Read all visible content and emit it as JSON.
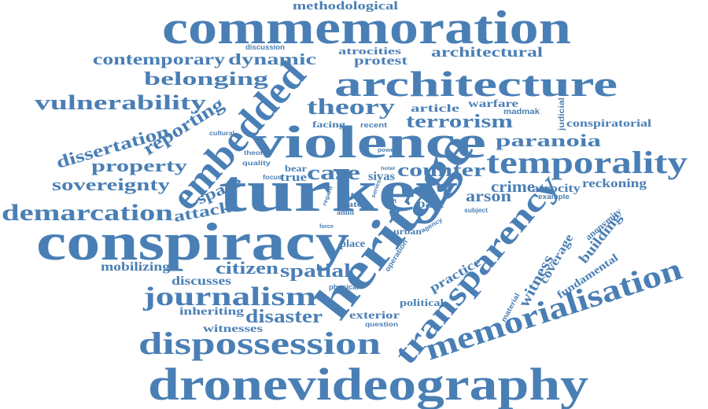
{
  "color": "#4a7fb5",
  "words": [
    "commemoration",
    "methodological",
    "discussion",
    "atrocities",
    "architectural",
    "contemporary",
    "dynamic",
    "protest",
    "embedded",
    "architecture",
    "belonging",
    "vulnerability",
    "theory",
    "article",
    "warfare",
    "madmak",
    "judicial",
    "reporting",
    "terrorism",
    "conspiratorial",
    "dissertation",
    "facing",
    "recent",
    "cultural",
    "violence",
    "paranoia",
    "property",
    "theorist",
    "quality",
    "power",
    "temporality",
    "focus",
    "bear",
    "case",
    "hotel",
    "counter",
    "true",
    "sivas",
    "sovereignty",
    "space",
    "site",
    "regard",
    "series",
    "crime",
    "atrocity",
    "reckoning",
    "turkey",
    "state",
    "shift",
    "arson",
    "example",
    "demarcation",
    "attack",
    "amid",
    "past",
    "subject",
    "anonymity",
    "agency",
    "conspiracy",
    "force",
    "urban",
    "building",
    "heritage",
    "place",
    "transparency",
    "operation",
    "coverage",
    "citizen",
    "fundamental",
    "mobilizing",
    "spatial",
    "practice",
    "witness",
    "discusses",
    "journalism",
    "physical",
    "material",
    "memorialisation",
    "political",
    "inheriting",
    "disaster",
    "exterior",
    "witnesses",
    "question",
    "dispossession",
    "dronevideography"
  ]
}
